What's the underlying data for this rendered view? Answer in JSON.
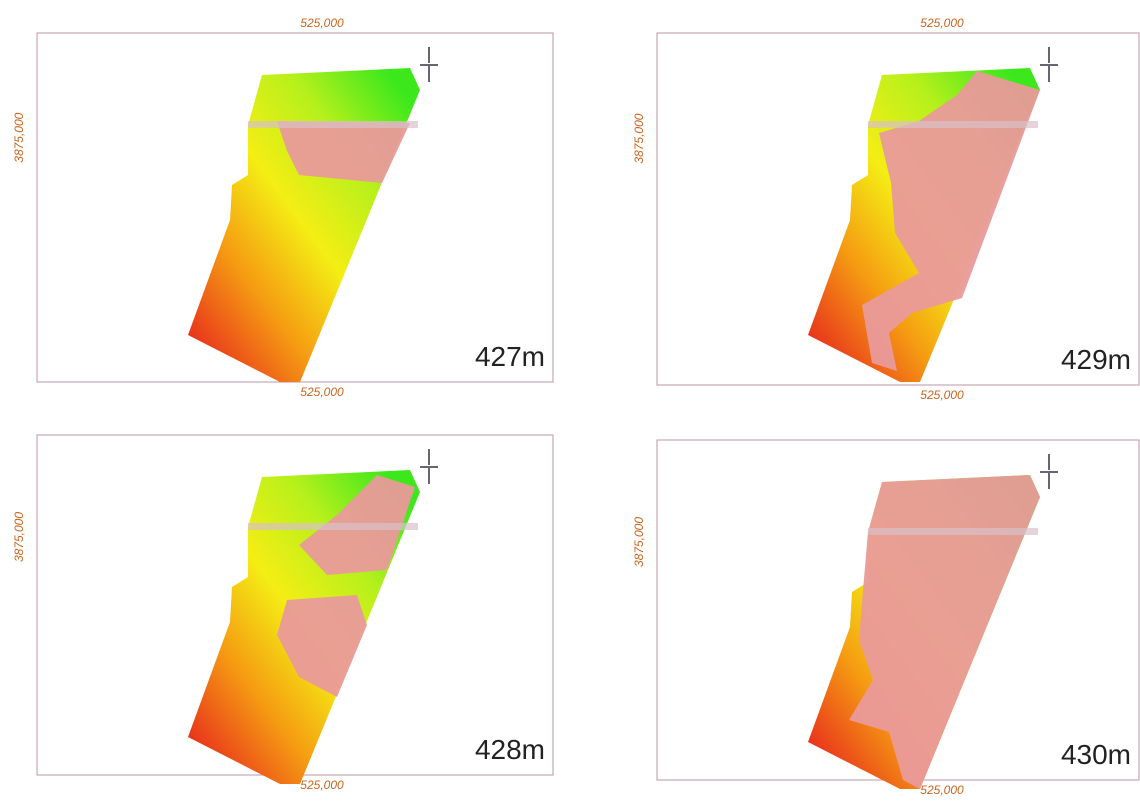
{
  "panels": [
    {
      "label": "427m",
      "top_label": "525,000",
      "bottom_label": "525,000",
      "left_label": "3875,000"
    },
    {
      "label": "429m",
      "top_label": "525,000",
      "bottom_label": "525,000",
      "left_label": "3875,000"
    },
    {
      "label": "428m",
      "bottom_label": "525,000",
      "left_label": "3875,000"
    },
    {
      "label": "430m",
      "bottom_label": "525,000",
      "left_label": "3875,000"
    }
  ]
}
